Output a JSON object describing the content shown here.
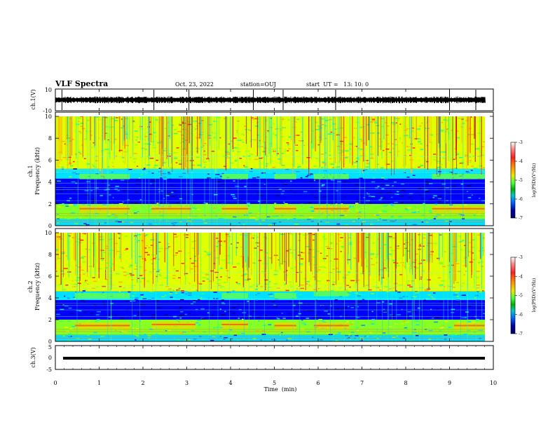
{
  "header": {
    "title": "VLF Spectra",
    "date": "Oct. 23, 2022",
    "station": "station=OUJ",
    "start_ut": "start  UT =   13: 10: 0"
  },
  "chart_data": [
    {
      "type": "line",
      "title": "",
      "ylabel": "ch.1(V)",
      "ylim": [
        -10,
        10
      ],
      "yticks": [
        "10",
        "-10"
      ],
      "x_range": [
        0,
        10
      ],
      "description_values": {
        "baseline": 0,
        "spikes_x_min": [
          0.15,
          2.25,
          3.05,
          4.52,
          5.2,
          6.4,
          9.0,
          9.6
        ]
      }
    },
    {
      "type": "heatmap",
      "ylabel": "Frequency (kHz)",
      "panel_label": "ch.1",
      "ylim": [
        0,
        10
      ],
      "yticks": [
        "0",
        "2",
        "4",
        "6",
        "8",
        "10"
      ],
      "xlim": [
        0,
        9.82
      ],
      "colorbar": {
        "label": "log(PSD)(V²/Hz)",
        "range": [
          -7,
          -3
        ],
        "ticks": [
          "-3",
          "-4",
          "-5",
          "-6",
          "-7"
        ]
      },
      "bands_khz": [
        {
          "from": 0,
          "to": 0.6,
          "level": -5.5
        },
        {
          "from": 0.6,
          "to": 2.0,
          "level": -5.0
        },
        {
          "from": 2.0,
          "to": 4.3,
          "level": -6.5
        },
        {
          "from": 4.3,
          "to": 5.2,
          "level": -5.8
        },
        {
          "from": 5.2,
          "to": 10,
          "level": -4.5
        }
      ]
    },
    {
      "type": "heatmap",
      "ylabel": "Frequency (kHz)",
      "panel_label": "ch.2",
      "ylim": [
        0,
        10
      ],
      "yticks": [
        "0",
        "2",
        "4",
        "6",
        "8",
        "10"
      ],
      "xlim": [
        0,
        9.82
      ],
      "colorbar": {
        "label": "log(PSD)(V²/Hz)",
        "range": [
          -7,
          -3
        ],
        "ticks": [
          "-3",
          "-4",
          "-5",
          "-6",
          "-7"
        ]
      },
      "bands_khz": [
        {
          "from": 0,
          "to": 0.6,
          "level": -5.5
        },
        {
          "from": 0.6,
          "to": 2.0,
          "level": -5.0
        },
        {
          "from": 2.0,
          "to": 3.8,
          "level": -6.5
        },
        {
          "from": 3.8,
          "to": 4.6,
          "level": -5.6
        },
        {
          "from": 4.6,
          "to": 10,
          "level": -4.3
        }
      ]
    },
    {
      "type": "line",
      "ylabel": "ch.3(V)",
      "ylim": [
        -5,
        5
      ],
      "yticks": [
        "5",
        "0",
        "-5"
      ],
      "xlabel": "Time  (min)",
      "xlim": [
        0,
        10
      ],
      "xticks": [
        "0",
        "1",
        "2",
        "3",
        "4",
        "5",
        "6",
        "7",
        "8",
        "9",
        "10"
      ],
      "series": [
        {
          "x": [
            0.15,
            9.82
          ],
          "values": [
            0.3,
            0.3
          ]
        }
      ]
    }
  ],
  "colors": {
    "colormap": [
      "#00007a",
      "#0000ff",
      "#0090ff",
      "#00e0ff",
      "#22ff88",
      "#88ff22",
      "#e0ff00",
      "#ffb000",
      "#ff3000",
      "#c00000"
    ],
    "colorbar_stops": [
      "#ffffff",
      "#ff9090",
      "#ff2020",
      "#ff8c00",
      "#e8e800",
      "#40ff40",
      "#00b000",
      "#00c8c8",
      "#0060ff",
      "#0000a0",
      "#000070"
    ]
  }
}
